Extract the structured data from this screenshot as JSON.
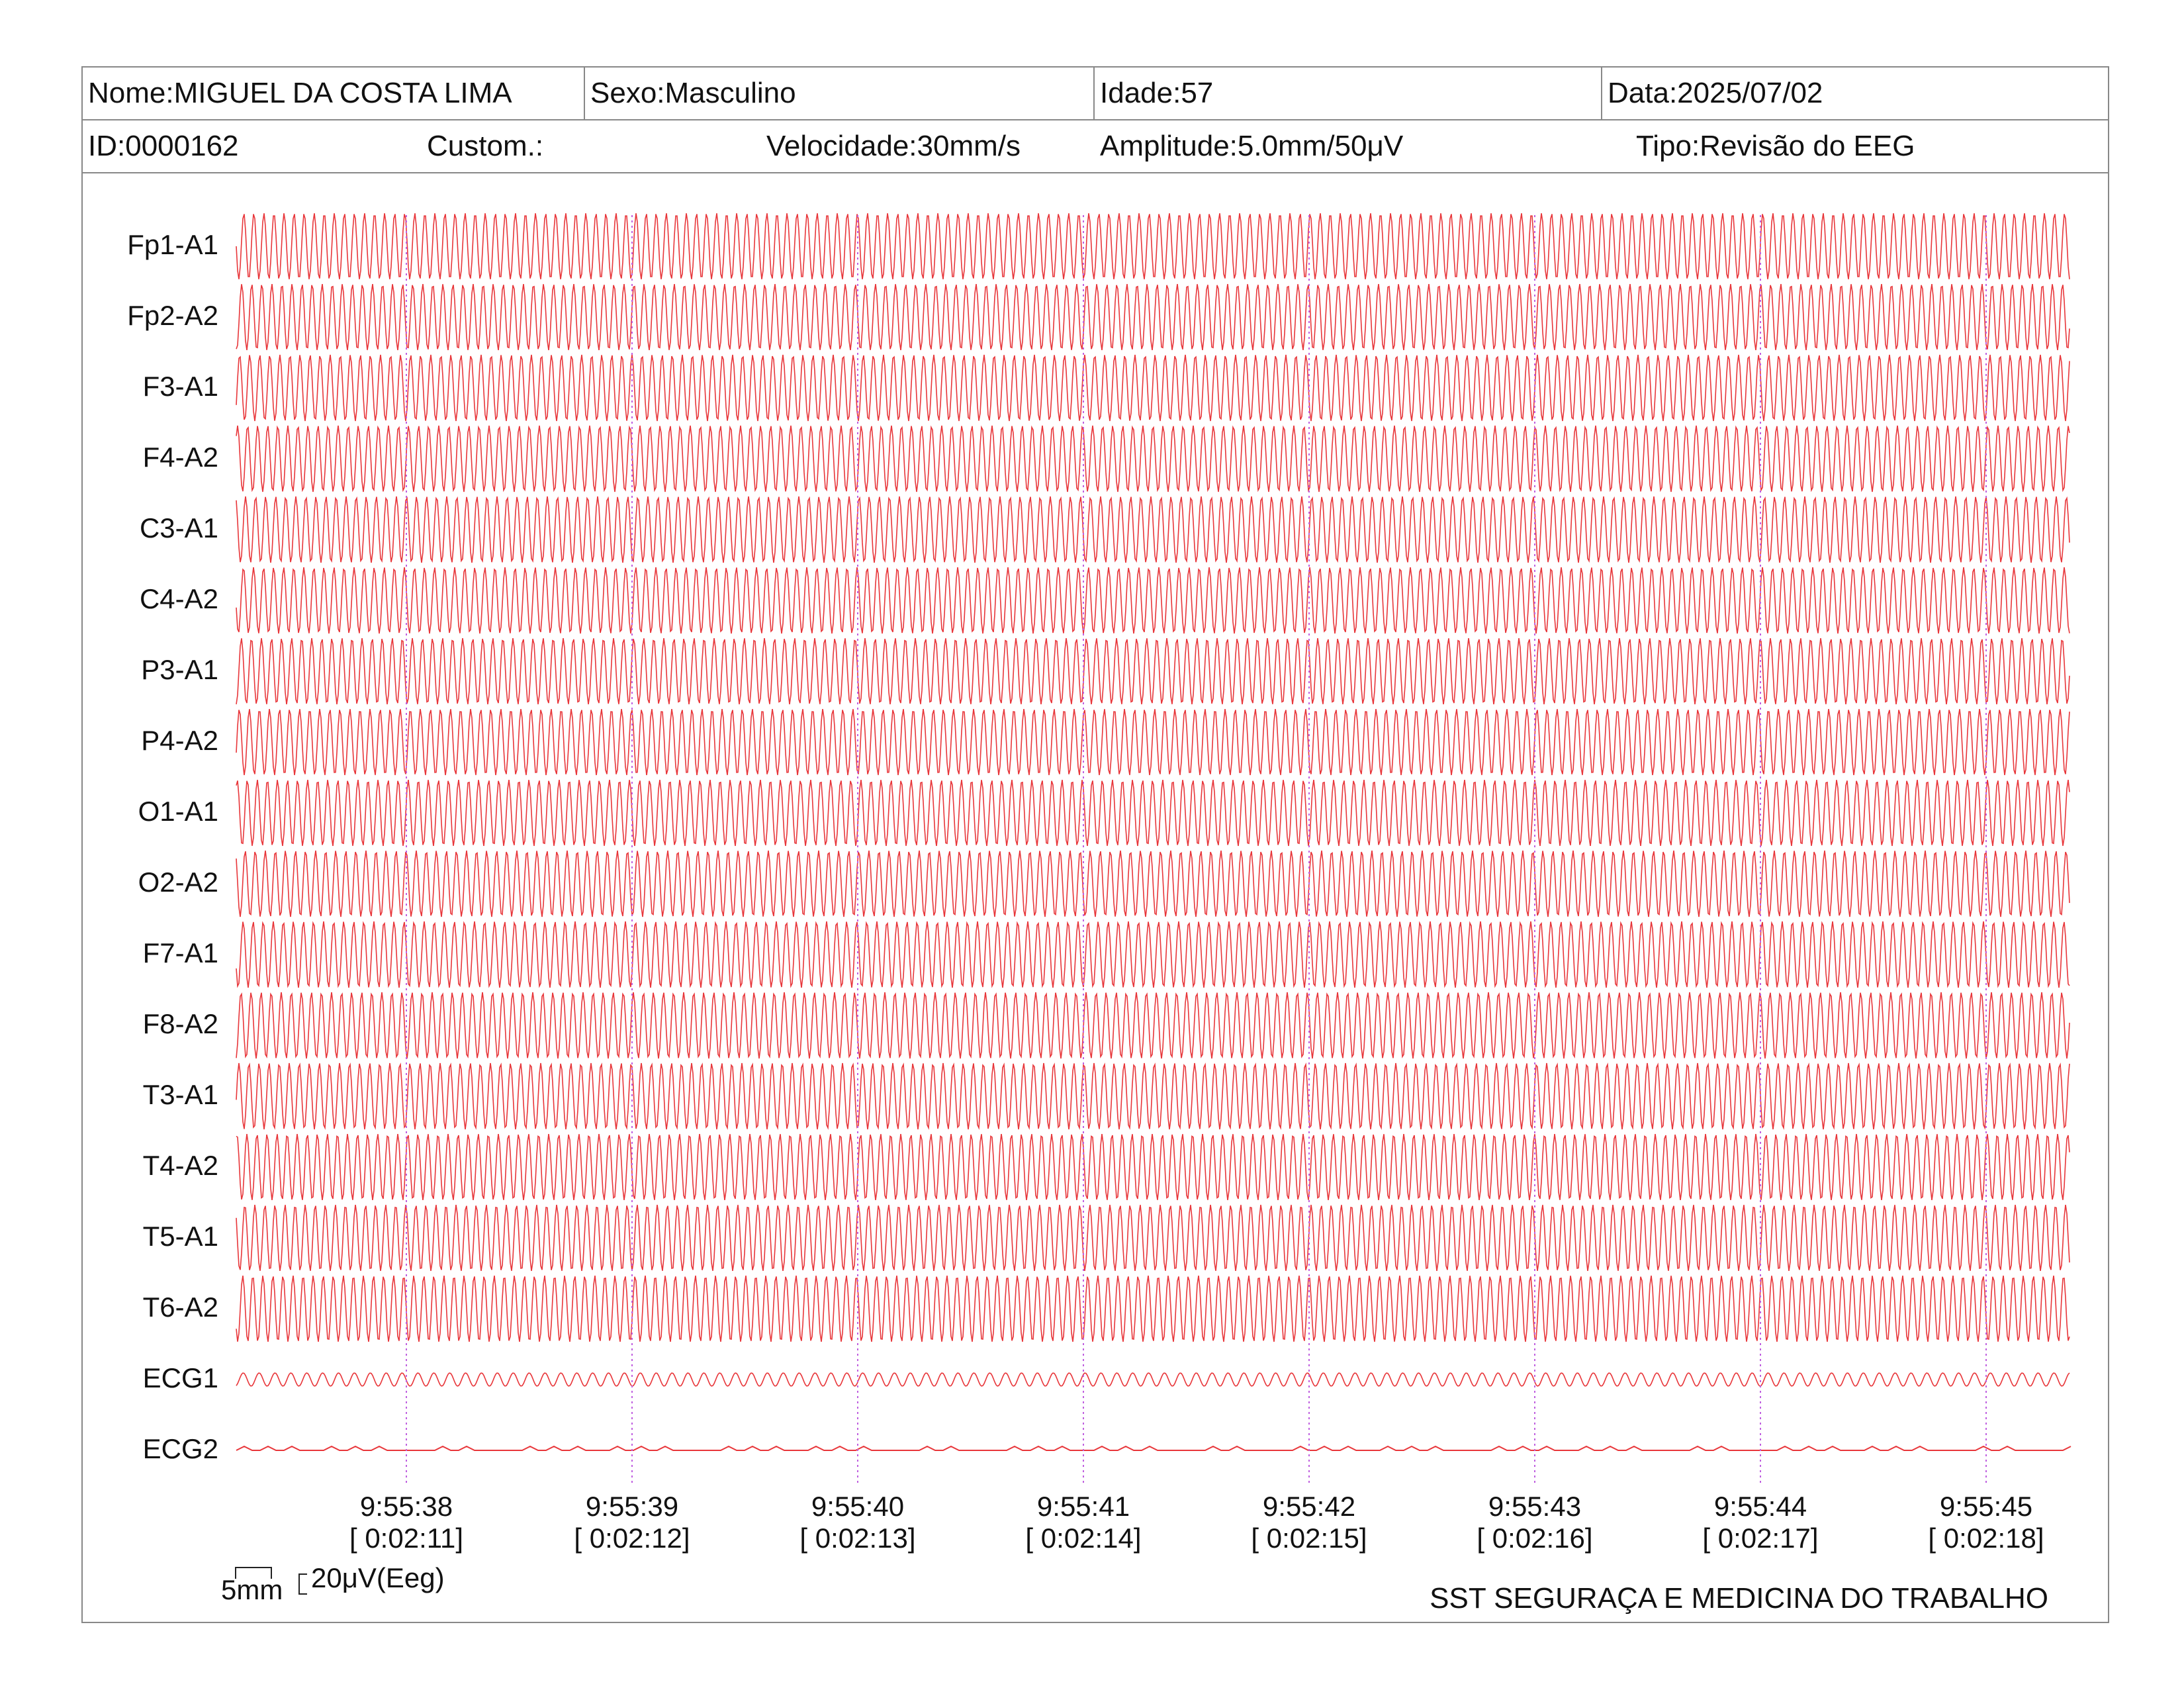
{
  "header": {
    "name": "Nome:MIGUEL DA COSTA LIMA",
    "sex": "Sexo:Masculino",
    "age": "Idade:57",
    "date": "Data:2025/07/02",
    "id": "ID:0000162",
    "custom": "Custom.:",
    "speed": "Velocidade:30mm/s",
    "amplitude": "Amplitude:5.0mm/50μV",
    "type": "Tipo:Revisão do EEG"
  },
  "channels": [
    "Fp1-A1",
    "Fp2-A2",
    "F3-A1",
    "F4-A2",
    "C3-A1",
    "C4-A2",
    "P3-A1",
    "P4-A2",
    "O1-A1",
    "O2-A2",
    "F7-A1",
    "F8-A2",
    "T3-A1",
    "T4-A2",
    "T5-A1",
    "T6-A2",
    "ECG1",
    "ECG2"
  ],
  "time_marks": [
    {
      "clock": "9:55:38",
      "elapsed": "[ 0:02:11]"
    },
    {
      "clock": "9:55:39",
      "elapsed": "[ 0:02:12]"
    },
    {
      "clock": "9:55:40",
      "elapsed": "[ 0:02:13]"
    },
    {
      "clock": "9:55:41",
      "elapsed": "[ 0:02:14]"
    },
    {
      "clock": "9:55:42",
      "elapsed": "[ 0:02:15]"
    },
    {
      "clock": "9:55:43",
      "elapsed": "[ 0:02:16]"
    },
    {
      "clock": "9:55:44",
      "elapsed": "[ 0:02:17]"
    },
    {
      "clock": "9:55:45",
      "elapsed": "[ 0:02:18]"
    }
  ],
  "scale": {
    "time": "5mm",
    "amplitude": "20μV(Eeg)"
  },
  "footer": "SST SEGURAÇA E MEDICINA DO TRABALHO",
  "colors": {
    "trace": "#e8363a",
    "time_marker": "#c060e0",
    "border": "#888888"
  }
}
